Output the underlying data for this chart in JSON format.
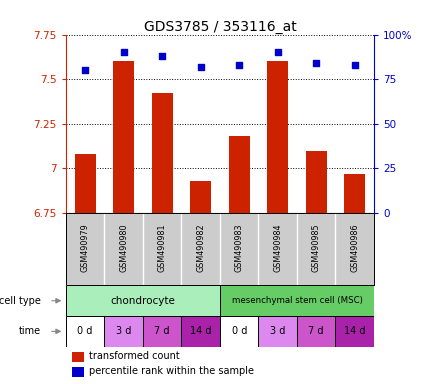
{
  "title": "GDS3785 / 353116_at",
  "samples": [
    "GSM490979",
    "GSM490980",
    "GSM490981",
    "GSM490982",
    "GSM490983",
    "GSM490984",
    "GSM490985",
    "GSM490986"
  ],
  "transformed_count": [
    7.08,
    7.6,
    7.42,
    6.93,
    7.18,
    7.6,
    7.1,
    6.97
  ],
  "percentile_rank": [
    80,
    90,
    88,
    82,
    83,
    90,
    84,
    83
  ],
  "ylim_left": [
    6.75,
    7.75
  ],
  "ylim_right": [
    0,
    100
  ],
  "yticks_left": [
    6.75,
    7.0,
    7.25,
    7.5,
    7.75
  ],
  "ytick_labels_left": [
    "6.75",
    "7",
    "7.25",
    "7.5",
    "7.75"
  ],
  "yticks_right": [
    0,
    25,
    50,
    75,
    100
  ],
  "ytick_labels_right": [
    "0",
    "25",
    "50",
    "75",
    "100%"
  ],
  "bar_color": "#cc2200",
  "dot_color": "#0000cc",
  "bar_width": 0.55,
  "chondrocyte_color": "#aaeebb",
  "msc_color": "#66cc66",
  "sample_bg_color": "#cccccc",
  "time_colors": [
    "#ffffff",
    "#dd88ee",
    "#cc55cc",
    "#aa22aa",
    "#ffffff",
    "#dd88ee",
    "#cc55cc",
    "#aa22aa"
  ],
  "time_labels": [
    "0 d",
    "3 d",
    "7 d",
    "14 d",
    "0 d",
    "3 d",
    "7 d",
    "14 d"
  ]
}
